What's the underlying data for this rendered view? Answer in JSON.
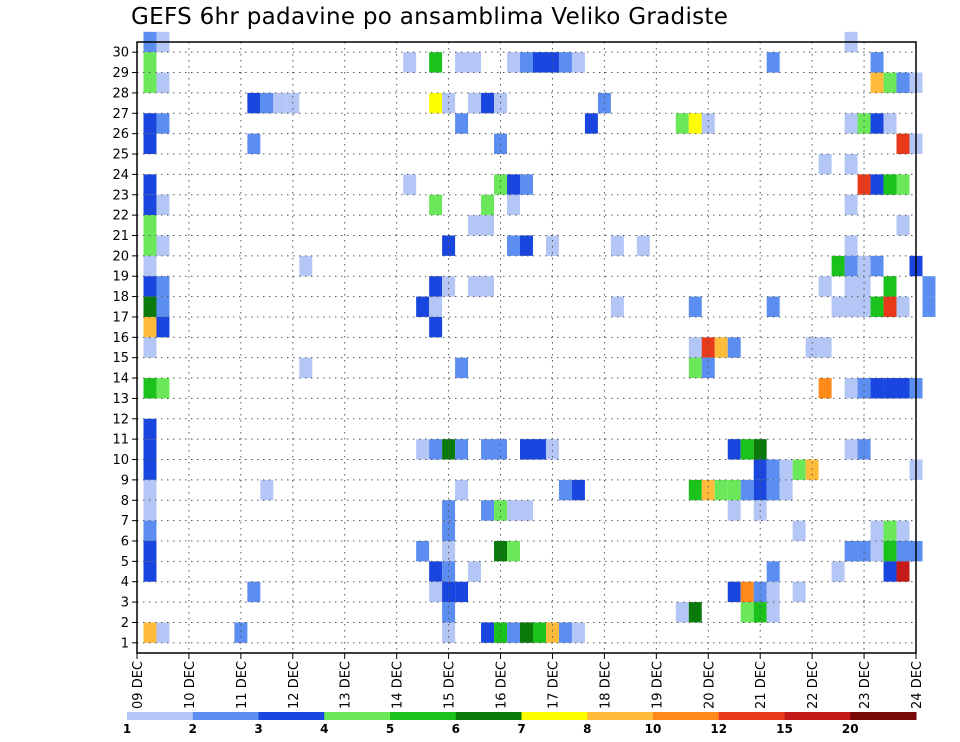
{
  "title": "GEFS 6hr padavine po ansamblima Veliko Gradiste",
  "chart_data": {
    "type": "heatmap",
    "title": "GEFS 6hr padavine po ansamblima Veliko Gradiste",
    "xlabel": "",
    "ylabel": "",
    "y_tick_labels": [
      "1",
      "2",
      "3",
      "4",
      "5",
      "6",
      "7",
      "8",
      "9",
      "10",
      "11",
      "12",
      "13",
      "14",
      "15",
      "16",
      "17",
      "18",
      "19",
      "20",
      "21",
      "22",
      "23",
      "24",
      "25",
      "26",
      "27",
      "28",
      "29",
      "30"
    ],
    "x_tick_labels": [
      "09 DEC",
      "10 DEC",
      "11 DEC",
      "12 DEC",
      "13 DEC",
      "14 DEC",
      "15 DEC",
      "16 DEC",
      "17 DEC",
      "18 DEC",
      "19 DEC",
      "20 DEC",
      "21 DEC",
      "22 DEC",
      "23 DEC",
      "24 DEC"
    ],
    "xlim_days": [
      0,
      15
    ],
    "ylim_members": [
      0.5,
      30.5
    ],
    "time_step_hours": 6,
    "grid": "dotted",
    "colorbar": {
      "labels": [
        "1",
        "2",
        "3",
        "4",
        "5",
        "6",
        "7",
        "8",
        "10",
        "12",
        "15",
        "20"
      ],
      "colors": [
        "#b4c6f5",
        "#5b8ef0",
        "#1a46e0",
        "#6ae85a",
        "#1cc21c",
        "#0a7a0a",
        "#ffff00",
        "#ffbc3a",
        "#ff8a1a",
        "#e83a1a",
        "#c41a1a",
        "#7a0a0a"
      ]
    },
    "cells": [
      {
        "member": 30,
        "day": 0.25,
        "level": 2
      },
      {
        "member": 30,
        "day": 0.5,
        "level": 1
      },
      {
        "member": 30,
        "day": 13.75,
        "level": 1
      },
      {
        "member": 29,
        "day": 0.25,
        "level": 4
      },
      {
        "member": 29,
        "day": 5.25,
        "level": 1
      },
      {
        "member": 29,
        "day": 5.75,
        "level": 5
      },
      {
        "member": 29,
        "day": 6.25,
        "level": 1
      },
      {
        "member": 29,
        "day": 6.5,
        "level": 1
      },
      {
        "member": 29,
        "day": 7.25,
        "level": 1
      },
      {
        "member": 29,
        "day": 7.5,
        "level": 2
      },
      {
        "member": 29,
        "day": 7.75,
        "level": 3
      },
      {
        "member": 29,
        "day": 8.0,
        "level": 3
      },
      {
        "member": 29,
        "day": 8.25,
        "level": 2
      },
      {
        "member": 29,
        "day": 8.5,
        "level": 1
      },
      {
        "member": 29,
        "day": 12.25,
        "level": 2
      },
      {
        "member": 29,
        "day": 14.25,
        "level": 2
      },
      {
        "member": 28,
        "day": 0.25,
        "level": 4
      },
      {
        "member": 28,
        "day": 0.5,
        "level": 1
      },
      {
        "member": 28,
        "day": 14.25,
        "level": 8
      },
      {
        "member": 28,
        "day": 14.5,
        "level": 4
      },
      {
        "member": 28,
        "day": 14.75,
        "level": 2
      },
      {
        "member": 28,
        "day": 15.0,
        "level": 1
      },
      {
        "member": 27,
        "day": 2.25,
        "level": 3
      },
      {
        "member": 27,
        "day": 2.5,
        "level": 2
      },
      {
        "member": 27,
        "day": 2.75,
        "level": 1
      },
      {
        "member": 27,
        "day": 3.0,
        "level": 1
      },
      {
        "member": 27,
        "day": 5.75,
        "level": 7
      },
      {
        "member": 27,
        "day": 6.0,
        "level": 1
      },
      {
        "member": 27,
        "day": 6.5,
        "level": 1
      },
      {
        "member": 27,
        "day": 6.75,
        "level": 3
      },
      {
        "member": 27,
        "day": 7.0,
        "level": 1
      },
      {
        "member": 27,
        "day": 9.0,
        "level": 2
      },
      {
        "member": 26,
        "day": 0.25,
        "level": 3
      },
      {
        "member": 26,
        "day": 0.5,
        "level": 2
      },
      {
        "member": 26,
        "day": 6.25,
        "level": 2
      },
      {
        "member": 26,
        "day": 8.75,
        "level": 3
      },
      {
        "member": 26,
        "day": 10.5,
        "level": 4
      },
      {
        "member": 26,
        "day": 10.75,
        "level": 7
      },
      {
        "member": 26,
        "day": 11.0,
        "level": 1
      },
      {
        "member": 26,
        "day": 13.75,
        "level": 1
      },
      {
        "member": 26,
        "day": 14.0,
        "level": 4
      },
      {
        "member": 26,
        "day": 14.25,
        "level": 3
      },
      {
        "member": 26,
        "day": 14.5,
        "level": 1
      },
      {
        "member": 25,
        "day": 0.25,
        "level": 3
      },
      {
        "member": 25,
        "day": 2.25,
        "level": 2
      },
      {
        "member": 25,
        "day": 7.0,
        "level": 2
      },
      {
        "member": 25,
        "day": 14.75,
        "level": 10
      },
      {
        "member": 25,
        "day": 15.0,
        "level": 1
      },
      {
        "member": 24,
        "day": 13.25,
        "level": 1
      },
      {
        "member": 24,
        "day": 13.75,
        "level": 1
      },
      {
        "member": 23,
        "day": 0.25,
        "level": 3
      },
      {
        "member": 23,
        "day": 5.25,
        "level": 1
      },
      {
        "member": 23,
        "day": 7.0,
        "level": 4
      },
      {
        "member": 23,
        "day": 7.25,
        "level": 3
      },
      {
        "member": 23,
        "day": 7.5,
        "level": 2
      },
      {
        "member": 23,
        "day": 14.0,
        "level": 10
      },
      {
        "member": 23,
        "day": 14.25,
        "level": 3
      },
      {
        "member": 23,
        "day": 14.5,
        "level": 5
      },
      {
        "member": 23,
        "day": 14.75,
        "level": 4
      },
      {
        "member": 22,
        "day": 0.25,
        "level": 3
      },
      {
        "member": 22,
        "day": 0.5,
        "level": 1
      },
      {
        "member": 22,
        "day": 5.75,
        "level": 4
      },
      {
        "member": 22,
        "day": 6.75,
        "level": 4
      },
      {
        "member": 22,
        "day": 7.25,
        "level": 1
      },
      {
        "member": 22,
        "day": 13.75,
        "level": 1
      },
      {
        "member": 21,
        "day": 0.25,
        "level": 4
      },
      {
        "member": 21,
        "day": 6.5,
        "level": 1
      },
      {
        "member": 21,
        "day": 6.75,
        "level": 1
      },
      {
        "member": 21,
        "day": 14.75,
        "level": 1
      },
      {
        "member": 20,
        "day": 0.25,
        "level": 4
      },
      {
        "member": 20,
        "day": 0.5,
        "level": 1
      },
      {
        "member": 20,
        "day": 6.0,
        "level": 3
      },
      {
        "member": 20,
        "day": 7.25,
        "level": 2
      },
      {
        "member": 20,
        "day": 7.5,
        "level": 3
      },
      {
        "member": 20,
        "day": 8.0,
        "level": 1
      },
      {
        "member": 20,
        "day": 9.25,
        "level": 1
      },
      {
        "member": 20,
        "day": 9.75,
        "level": 1
      },
      {
        "member": 20,
        "day": 13.75,
        "level": 1
      },
      {
        "member": 19,
        "day": 0.25,
        "level": 1
      },
      {
        "member": 19,
        "day": 3.25,
        "level": 1
      },
      {
        "member": 19,
        "day": 13.5,
        "level": 5
      },
      {
        "member": 19,
        "day": 13.75,
        "level": 2
      },
      {
        "member": 19,
        "day": 14.0,
        "level": 1
      },
      {
        "member": 19,
        "day": 14.25,
        "level": 2
      },
      {
        "member": 19,
        "day": 15.0,
        "level": 3
      },
      {
        "member": 18,
        "day": 0.25,
        "level": 3
      },
      {
        "member": 18,
        "day": 0.5,
        "level": 2
      },
      {
        "member": 18,
        "day": 5.75,
        "level": 3
      },
      {
        "member": 18,
        "day": 6.0,
        "level": 1
      },
      {
        "member": 18,
        "day": 6.5,
        "level": 1
      },
      {
        "member": 18,
        "day": 6.75,
        "level": 1
      },
      {
        "member": 18,
        "day": 13.25,
        "level": 1
      },
      {
        "member": 18,
        "day": 13.75,
        "level": 1
      },
      {
        "member": 18,
        "day": 14.0,
        "level": 1
      },
      {
        "member": 18,
        "day": 14.5,
        "level": 5
      },
      {
        "member": 18,
        "day": 15.25,
        "level": 2
      },
      {
        "member": 17,
        "day": 0.25,
        "level": 6
      },
      {
        "member": 17,
        "day": 0.5,
        "level": 2
      },
      {
        "member": 17,
        "day": 5.5,
        "level": 3
      },
      {
        "member": 17,
        "day": 5.75,
        "level": 1
      },
      {
        "member": 17,
        "day": 9.25,
        "level": 1
      },
      {
        "member": 17,
        "day": 10.75,
        "level": 2
      },
      {
        "member": 17,
        "day": 12.25,
        "level": 2
      },
      {
        "member": 17,
        "day": 13.5,
        "level": 1
      },
      {
        "member": 17,
        "day": 13.75,
        "level": 1
      },
      {
        "member": 17,
        "day": 14.0,
        "level": 1
      },
      {
        "member": 17,
        "day": 14.25,
        "level": 5
      },
      {
        "member": 17,
        "day": 14.5,
        "level": 10
      },
      {
        "member": 17,
        "day": 14.75,
        "level": 1
      },
      {
        "member": 17,
        "day": 15.25,
        "level": 2
      },
      {
        "member": 16,
        "day": 0.25,
        "level": 8
      },
      {
        "member": 16,
        "day": 0.5,
        "level": 3
      },
      {
        "member": 16,
        "day": 5.75,
        "level": 3
      },
      {
        "member": 15,
        "day": 0.25,
        "level": 1
      },
      {
        "member": 15,
        "day": 10.75,
        "level": 1
      },
      {
        "member": 15,
        "day": 11.0,
        "level": 10
      },
      {
        "member": 15,
        "day": 11.25,
        "level": 8
      },
      {
        "member": 15,
        "day": 11.5,
        "level": 2
      },
      {
        "member": 15,
        "day": 13.0,
        "level": 1
      },
      {
        "member": 15,
        "day": 13.25,
        "level": 1
      },
      {
        "member": 14,
        "day": 3.25,
        "level": 1
      },
      {
        "member": 14,
        "day": 6.25,
        "level": 2
      },
      {
        "member": 14,
        "day": 10.75,
        "level": 4
      },
      {
        "member": 14,
        "day": 11.0,
        "level": 2
      },
      {
        "member": 13,
        "day": 0.25,
        "level": 5
      },
      {
        "member": 13,
        "day": 0.5,
        "level": 4
      },
      {
        "member": 13,
        "day": 13.25,
        "level": 9
      },
      {
        "member": 13,
        "day": 13.75,
        "level": 1
      },
      {
        "member": 13,
        "day": 14.0,
        "level": 2
      },
      {
        "member": 13,
        "day": 14.25,
        "level": 3
      },
      {
        "member": 13,
        "day": 14.5,
        "level": 3
      },
      {
        "member": 13,
        "day": 14.75,
        "level": 3
      },
      {
        "member": 13,
        "day": 15.0,
        "level": 2
      },
      {
        "member": 11,
        "day": 0.25,
        "level": 3
      },
      {
        "member": 10,
        "day": 0.25,
        "level": 3
      },
      {
        "member": 10,
        "day": 5.5,
        "level": 1
      },
      {
        "member": 10,
        "day": 5.75,
        "level": 2
      },
      {
        "member": 10,
        "day": 6.0,
        "level": 6
      },
      {
        "member": 10,
        "day": 6.25,
        "level": 2
      },
      {
        "member": 10,
        "day": 6.75,
        "level": 2
      },
      {
        "member": 10,
        "day": 7.0,
        "level": 2
      },
      {
        "member": 10,
        "day": 7.5,
        "level": 3
      },
      {
        "member": 10,
        "day": 7.75,
        "level": 3
      },
      {
        "member": 10,
        "day": 8.0,
        "level": 1
      },
      {
        "member": 10,
        "day": 11.5,
        "level": 3
      },
      {
        "member": 10,
        "day": 11.75,
        "level": 5
      },
      {
        "member": 10,
        "day": 12.0,
        "level": 6
      },
      {
        "member": 10,
        "day": 13.75,
        "level": 1
      },
      {
        "member": 10,
        "day": 14.0,
        "level": 2
      },
      {
        "member": 9,
        "day": 0.25,
        "level": 3
      },
      {
        "member": 9,
        "day": 12.0,
        "level": 3
      },
      {
        "member": 9,
        "day": 12.25,
        "level": 2
      },
      {
        "member": 9,
        "day": 12.5,
        "level": 1
      },
      {
        "member": 9,
        "day": 12.75,
        "level": 4
      },
      {
        "member": 9,
        "day": 13.0,
        "level": 8
      },
      {
        "member": 9,
        "day": 15.0,
        "level": 1
      },
      {
        "member": 8,
        "day": 0.25,
        "level": 1
      },
      {
        "member": 8,
        "day": 2.5,
        "level": 1
      },
      {
        "member": 8,
        "day": 6.25,
        "level": 1
      },
      {
        "member": 8,
        "day": 8.25,
        "level": 2
      },
      {
        "member": 8,
        "day": 8.5,
        "level": 3
      },
      {
        "member": 8,
        "day": 10.75,
        "level": 5
      },
      {
        "member": 8,
        "day": 11.0,
        "level": 8
      },
      {
        "member": 8,
        "day": 11.25,
        "level": 4
      },
      {
        "member": 8,
        "day": 11.5,
        "level": 4
      },
      {
        "member": 8,
        "day": 11.75,
        "level": 2
      },
      {
        "member": 8,
        "day": 12.0,
        "level": 3
      },
      {
        "member": 8,
        "day": 12.25,
        "level": 2
      },
      {
        "member": 8,
        "day": 12.5,
        "level": 1
      },
      {
        "member": 7,
        "day": 0.25,
        "level": 1
      },
      {
        "member": 7,
        "day": 6.0,
        "level": 2
      },
      {
        "member": 7,
        "day": 6.75,
        "level": 2
      },
      {
        "member": 7,
        "day": 7.0,
        "level": 4
      },
      {
        "member": 7,
        "day": 7.25,
        "level": 1
      },
      {
        "member": 7,
        "day": 7.5,
        "level": 1
      },
      {
        "member": 7,
        "day": 11.5,
        "level": 1
      },
      {
        "member": 7,
        "day": 12.0,
        "level": 1
      },
      {
        "member": 6,
        "day": 0.25,
        "level": 2
      },
      {
        "member": 6,
        "day": 6.0,
        "level": 2
      },
      {
        "member": 6,
        "day": 12.75,
        "level": 1
      },
      {
        "member": 6,
        "day": 14.25,
        "level": 1
      },
      {
        "member": 6,
        "day": 14.5,
        "level": 4
      },
      {
        "member": 6,
        "day": 14.75,
        "level": 1
      },
      {
        "member": 5,
        "day": 0.25,
        "level": 3
      },
      {
        "member": 5,
        "day": 5.5,
        "level": 2
      },
      {
        "member": 5,
        "day": 6.0,
        "level": 1
      },
      {
        "member": 5,
        "day": 7.0,
        "level": 6
      },
      {
        "member": 5,
        "day": 7.25,
        "level": 4
      },
      {
        "member": 5,
        "day": 13.75,
        "level": 2
      },
      {
        "member": 5,
        "day": 14.0,
        "level": 2
      },
      {
        "member": 5,
        "day": 14.25,
        "level": 1
      },
      {
        "member": 5,
        "day": 14.5,
        "level": 5
      },
      {
        "member": 5,
        "day": 14.75,
        "level": 2
      },
      {
        "member": 5,
        "day": 15.0,
        "level": 2
      },
      {
        "member": 4,
        "day": 0.25,
        "level": 3
      },
      {
        "member": 4,
        "day": 5.75,
        "level": 3
      },
      {
        "member": 4,
        "day": 6.0,
        "level": 2
      },
      {
        "member": 4,
        "day": 6.5,
        "level": 1
      },
      {
        "member": 4,
        "day": 12.25,
        "level": 2
      },
      {
        "member": 4,
        "day": 13.5,
        "level": 1
      },
      {
        "member": 4,
        "day": 14.5,
        "level": 3
      },
      {
        "member": 4,
        "day": 14.75,
        "level": 11
      },
      {
        "member": 3,
        "day": 2.25,
        "level": 2
      },
      {
        "member": 3,
        "day": 5.75,
        "level": 1
      },
      {
        "member": 3,
        "day": 6.0,
        "level": 3
      },
      {
        "member": 3,
        "day": 6.25,
        "level": 3
      },
      {
        "member": 3,
        "day": 11.5,
        "level": 3
      },
      {
        "member": 3,
        "day": 11.75,
        "level": 9
      },
      {
        "member": 3,
        "day": 12.0,
        "level": 2
      },
      {
        "member": 3,
        "day": 12.25,
        "level": 1
      },
      {
        "member": 3,
        "day": 12.75,
        "level": 1
      },
      {
        "member": 2,
        "day": 6.0,
        "level": 2
      },
      {
        "member": 2,
        "day": 10.5,
        "level": 1
      },
      {
        "member": 2,
        "day": 10.75,
        "level": 6
      },
      {
        "member": 2,
        "day": 11.75,
        "level": 4
      },
      {
        "member": 2,
        "day": 12.0,
        "level": 5
      },
      {
        "member": 2,
        "day": 12.25,
        "level": 1
      },
      {
        "member": 1,
        "day": 0.25,
        "level": 8
      },
      {
        "member": 1,
        "day": 0.5,
        "level": 1
      },
      {
        "member": 1,
        "day": 2.0,
        "level": 2
      },
      {
        "member": 1,
        "day": 6.0,
        "level": 1
      },
      {
        "member": 1,
        "day": 6.75,
        "level": 3
      },
      {
        "member": 1,
        "day": 7.0,
        "level": 5
      },
      {
        "member": 1,
        "day": 7.25,
        "level": 2
      },
      {
        "member": 1,
        "day": 7.5,
        "level": 6
      },
      {
        "member": 1,
        "day": 7.75,
        "level": 5
      },
      {
        "member": 1,
        "day": 8.0,
        "level": 8
      },
      {
        "member": 1,
        "day": 8.25,
        "level": 2
      },
      {
        "member": 1,
        "day": 8.5,
        "level": 1
      }
    ]
  }
}
